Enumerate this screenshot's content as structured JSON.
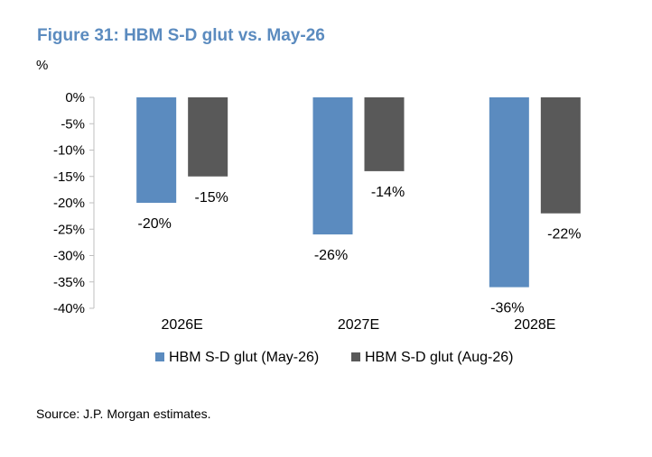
{
  "colors": {
    "title": "#5B8BBF",
    "series_may": "#5B8BBF",
    "series_aug": "#595959",
    "axis": "#BFBFBF",
    "text": "#000000",
    "background": "#FFFFFF"
  },
  "chart_data": {
    "type": "bar",
    "title": "Figure 31: HBM S-D glut vs. May-26",
    "ylabel": "%",
    "xlabel": "",
    "categories": [
      "2026E",
      "2027E",
      "2028E"
    ],
    "series": [
      {
        "name": "HBM S-D glut (May-26)",
        "values": [
          -20,
          -26,
          -36
        ],
        "labels": [
          "-20%",
          "-26%",
          "-36%"
        ],
        "color": "#5B8BBF"
      },
      {
        "name": "HBM S-D glut (Aug-26)",
        "values": [
          -15,
          -14,
          -22
        ],
        "labels": [
          "-15%",
          "-14%",
          "-22%"
        ],
        "color": "#595959"
      }
    ],
    "ylim": [
      -40,
      0
    ],
    "yticks": [
      0,
      -5,
      -10,
      -15,
      -20,
      -25,
      -30,
      -35,
      -40
    ],
    "ytick_labels": [
      "0%",
      "-5%",
      "-10%",
      "-15%",
      "-20%",
      "-25%",
      "-30%",
      "-35%",
      "-40%"
    ],
    "grid": false,
    "legend_position": "bottom"
  },
  "source": "Source: J.P. Morgan estimates."
}
